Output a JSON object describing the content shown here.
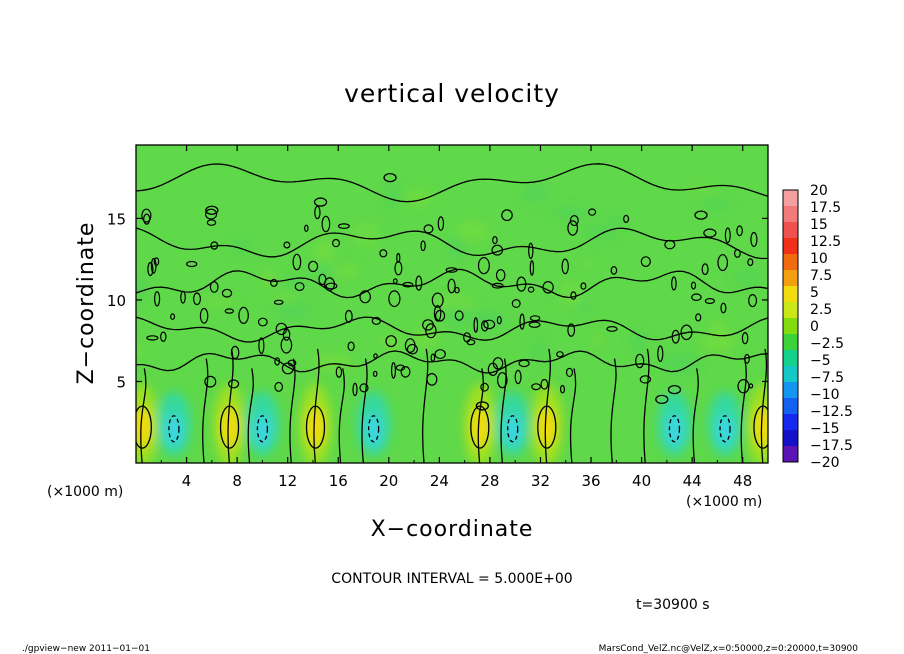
{
  "chart_data": {
    "type": "heatmap",
    "title": "vertical velocity",
    "xlabel": "X−coordinate",
    "ylabel": "Z−coordinate",
    "x_unit": "(×1000 m)",
    "y_unit": "(×1000 m)",
    "xlim": [
      0,
      50
    ],
    "ylim": [
      0,
      19.5
    ],
    "x_ticks": [
      "4",
      "8",
      "12",
      "16",
      "20",
      "24",
      "28",
      "32",
      "36",
      "40",
      "44",
      "48"
    ],
    "y_ticks": [
      "5",
      "10",
      "15"
    ],
    "contour_interval_label": "CONTOUR INTERVAL = 5.000E+00",
    "time_label": "t=30900 s",
    "colorbar": {
      "levels": [
        "20",
        "17.5",
        "15",
        "12.5",
        "10",
        "7.5",
        "5",
        "2.5",
        "0",
        "−2.5",
        "−5",
        "−7.5",
        "−10",
        "−12.5",
        "−15",
        "−17.5",
        "−20"
      ],
      "colors": [
        "#f4a0a0",
        "#f27a7a",
        "#f05050",
        "#f03018",
        "#f26a10",
        "#f2a010",
        "#f2dc10",
        "#c8e818",
        "#82dc0e",
        "#3cd23c",
        "#14d28c",
        "#14c8c8",
        "#1496f0",
        "#1460f0",
        "#1428f0",
        "#1410c8",
        "#5a14b4"
      ]
    },
    "features": {
      "updrafts_x": [
        0.5,
        7.4,
        14.2,
        27.2,
        32.5,
        49.6
      ],
      "downdrafts_x": [
        3.0,
        10.0,
        18.8,
        29.8,
        42.6,
        46.6
      ]
    }
  },
  "footer": {
    "left": "./gpview−new   2011−01−01",
    "right": "MarsCond_VelZ.nc@VelZ,x=0:50000,z=0:20000,t=30900"
  }
}
